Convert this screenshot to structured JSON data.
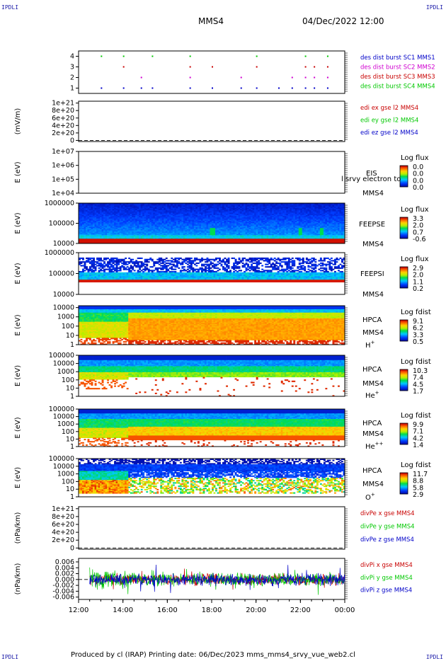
{
  "header": {
    "corner_label": "IPDLI",
    "spacecraft": "MMS4",
    "datetime": "04/Dec/2022 12:00"
  },
  "footer": {
    "text": "Produced by cl (IRAP)   Printing date: 06/Dec/2023   mms_mms4_srvy_vue_web2.cl"
  },
  "time_axis": {
    "ticks": [
      "12:00",
      "14:00",
      "16:00",
      "18:00",
      "20:00",
      "22:00",
      "00:00"
    ]
  },
  "colors": {
    "blue": "#0000c8",
    "magenta": "#d000d0",
    "red": "#c80000",
    "green": "#00c800"
  },
  "panels": [
    {
      "id": "burst",
      "type": "scatter",
      "ylabel": "",
      "yticks": [
        "4",
        "3",
        "2",
        "1"
      ],
      "yvalues": [
        4,
        3,
        2,
        1
      ],
      "ylim": [
        0.5,
        4.5
      ],
      "legend": [
        {
          "text": "des dist burst SC1 MMS1",
          "color": "#0000c8"
        },
        {
          "text": "des dist burst SC2 MMS2",
          "color": "#d000d0"
        },
        {
          "text": "des dist burst SC3 MMS3",
          "color": "#c80000"
        },
        {
          "text": "des dist burst SC4 MMS4",
          "color": "#00c800"
        }
      ],
      "burst_hours": [
        1.0,
        2.0,
        2.8,
        3.3,
        5.0,
        6.0,
        7.3,
        8.0,
        9.0,
        9.6,
        10.2,
        10.6,
        11.2
      ]
    },
    {
      "id": "edi",
      "type": "line",
      "ylabel": "(mV/m)",
      "yticks": [
        "1e+21",
        "8e+20",
        "6e+20",
        "4e+20",
        "2e+20",
        "0"
      ],
      "yvalues": [
        1e+21,
        8e+20,
        6e+20,
        4e+20,
        2e+20,
        0
      ],
      "ylim": [
        -3e+19,
        1.05e+21
      ],
      "legend": [
        {
          "text": "edi ex gse l2 MMS4",
          "color": "#c80000"
        },
        {
          "text": "edi ey gse l2 MMS4",
          "color": "#00c800"
        },
        {
          "text": "edi ez gse l2 MMS4",
          "color": "#0000c8"
        }
      ]
    },
    {
      "id": "eis",
      "type": "heatmap",
      "ylabel": "E (eV)",
      "yticks": [
        "1e+07",
        "1e+06",
        "1e+05",
        "1e+04"
      ],
      "yvalues": [
        7,
        6,
        5,
        4
      ],
      "ylim": [
        4,
        7
      ],
      "label_lines": [
        "EIS",
        "MMS4"
      ],
      "overlay_text": "l srvy electron to",
      "cbar_title": "Log flux",
      "cbar_ticks": [
        "0.0",
        "0.0",
        "0.0",
        "0.0"
      ]
    },
    {
      "id": "feepse",
      "type": "heatmap",
      "ylabel": "E (eV)",
      "yticks": [
        "1000000",
        "100000",
        "10000"
      ],
      "yvalues": [
        6,
        5,
        4
      ],
      "ylim": [
        4,
        6
      ],
      "label_lines": [
        "FEEPSE",
        "MMS4"
      ],
      "cbar_title": "Log flux",
      "cbar_ticks": [
        "3.3",
        "2.0",
        "0.7",
        "-0.6"
      ]
    },
    {
      "id": "feepsi",
      "type": "heatmap",
      "ylabel": "E (eV)",
      "yticks": [
        "1000000",
        "100000",
        "10000"
      ],
      "yvalues": [
        6,
        5,
        4
      ],
      "ylim": [
        4,
        6
      ],
      "label_lines": [
        "FEEPSI",
        "MMS4"
      ],
      "cbar_title": "Log flux",
      "cbar_ticks": [
        "2.9",
        "2.0",
        "1.1",
        "0.2"
      ]
    },
    {
      "id": "hpca_h",
      "type": "heatmap",
      "ylabel": "E (eV)",
      "yticks": [
        "10000",
        "1000",
        "100",
        "10",
        "1"
      ],
      "yvalues": [
        4,
        3,
        2,
        1,
        0
      ],
      "ylim": [
        0,
        4.2
      ],
      "label_lines": [
        "HPCA",
        "MMS4",
        "H+"
      ],
      "cbar_title": "Log fdist",
      "cbar_ticks": [
        "9.1",
        "6.2",
        "3.3",
        "0.5"
      ]
    },
    {
      "id": "hpca_he",
      "type": "heatmap",
      "ylabel": "E (eV)",
      "yticks": [
        "100000",
        "10000",
        "1000",
        "100",
        "10",
        "1"
      ],
      "yvalues": [
        5,
        4,
        3,
        2,
        1,
        0
      ],
      "ylim": [
        0,
        5
      ],
      "label_lines": [
        "HPCA",
        "MMS4",
        "He+"
      ],
      "cbar_title": "Log fdist",
      "cbar_ticks": [
        "10.3",
        "7.4",
        "4.5",
        "1.7"
      ]
    },
    {
      "id": "hpca_hepp",
      "type": "heatmap",
      "ylabel": "E (eV)",
      "yticks": [
        "100000",
        "10000",
        "1000",
        "100",
        "10",
        "1"
      ],
      "yvalues": [
        5,
        4,
        3,
        2,
        1,
        0
      ],
      "ylim": [
        0,
        5
      ],
      "label_lines": [
        "HPCA",
        "MMS4",
        "He++"
      ],
      "cbar_title": "Log fdist",
      "cbar_ticks": [
        "9.9",
        "7.1",
        "4.2",
        "1.4"
      ]
    },
    {
      "id": "hpca_o",
      "type": "heatmap",
      "ylabel": "E (eV)",
      "yticks": [
        "100000",
        "10000",
        "1000",
        "100",
        "10",
        "1"
      ],
      "yvalues": [
        5,
        4,
        3,
        2,
        1,
        0
      ],
      "ylim": [
        0,
        5
      ],
      "label_lines": [
        "HPCA",
        "MMS4",
        "O+"
      ],
      "cbar_title": "Log fdist",
      "cbar_ticks": [
        "11.7",
        "8.8",
        "5.8",
        "2.9"
      ]
    },
    {
      "id": "divpe",
      "type": "line",
      "ylabel": "(nPa/km)",
      "yticks": [
        "1e+21",
        "8e+20",
        "6e+20",
        "4e+20",
        "2e+20",
        "0"
      ],
      "yvalues": [
        1e+21,
        8e+20,
        6e+20,
        4e+20,
        2e+20,
        0
      ],
      "ylim": [
        -3e+19,
        1.05e+21
      ],
      "legend": [
        {
          "text": "divPe x gse MMS4",
          "color": "#c80000"
        },
        {
          "text": "divPe y gse MMS4",
          "color": "#00c800"
        },
        {
          "text": "divPe z gse MMS4",
          "color": "#0000c8"
        }
      ]
    },
    {
      "id": "divpi",
      "type": "line",
      "ylabel": "(nPa/km)",
      "yticks": [
        "0.006",
        "0.004",
        "0.002",
        "0.000",
        "-0.002",
        "-0.004",
        "-0.006"
      ],
      "yvalues": [
        0.006,
        0.004,
        0.002,
        0.0,
        -0.002,
        -0.004,
        -0.006
      ],
      "ylim": [
        -0.0068,
        0.0072
      ],
      "legend": [
        {
          "text": "divPi x gse MMS4",
          "color": "#c80000"
        },
        {
          "text": "divPi y gse MMS4",
          "color": "#00c800"
        },
        {
          "text": "divPi z gse MMS4",
          "color": "#0000c8"
        }
      ]
    }
  ],
  "chart_data": {
    "type": "heatmap",
    "title": "MMS4 04/Dec/2022 12:00",
    "x_ticks": [
      "12:00",
      "14:00",
      "16:00",
      "18:00",
      "20:00",
      "22:00",
      "00:00"
    ],
    "panels": [
      "des dist burst",
      "edi e gse",
      "EIS",
      "FEEPSE",
      "FEEPSI",
      "HPCA H+",
      "HPCA He+",
      "HPCA He++",
      "HPCA O+",
      "divPe gse",
      "divPi gse"
    ]
  }
}
